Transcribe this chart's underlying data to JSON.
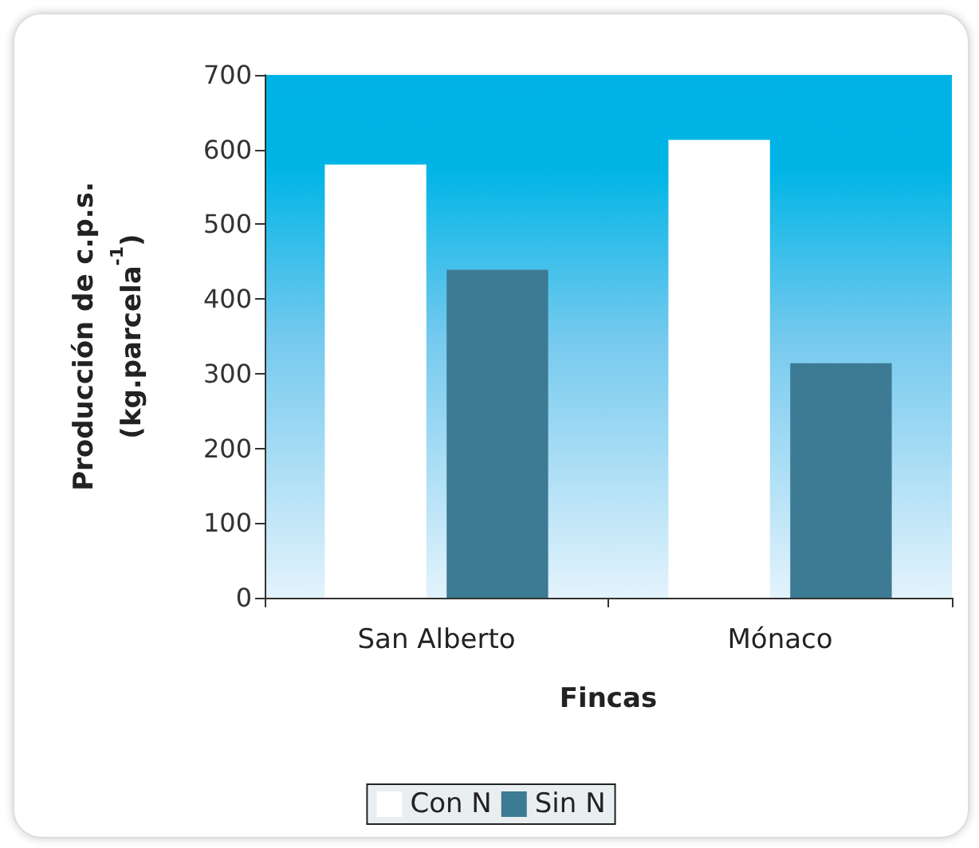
{
  "chart_data": {
    "type": "bar",
    "xlabel": "Fincas",
    "ylabel": "Producción de c.p.s.\n(kg.parcela$^{-1}$)",
    "categories": [
      "San Alberto",
      "Mónaco"
    ],
    "series": [
      {
        "name": "Con N",
        "color": "#ffffff",
        "values": [
          580,
          613
        ]
      },
      {
        "name": "Sin N",
        "color": "#3d7a93",
        "values": [
          439,
          314
        ]
      }
    ],
    "ylim": [
      0,
      700
    ],
    "yticks": [
      0,
      100,
      200,
      300,
      400,
      500,
      600,
      700
    ],
    "grid": false,
    "legend": "bottom"
  }
}
